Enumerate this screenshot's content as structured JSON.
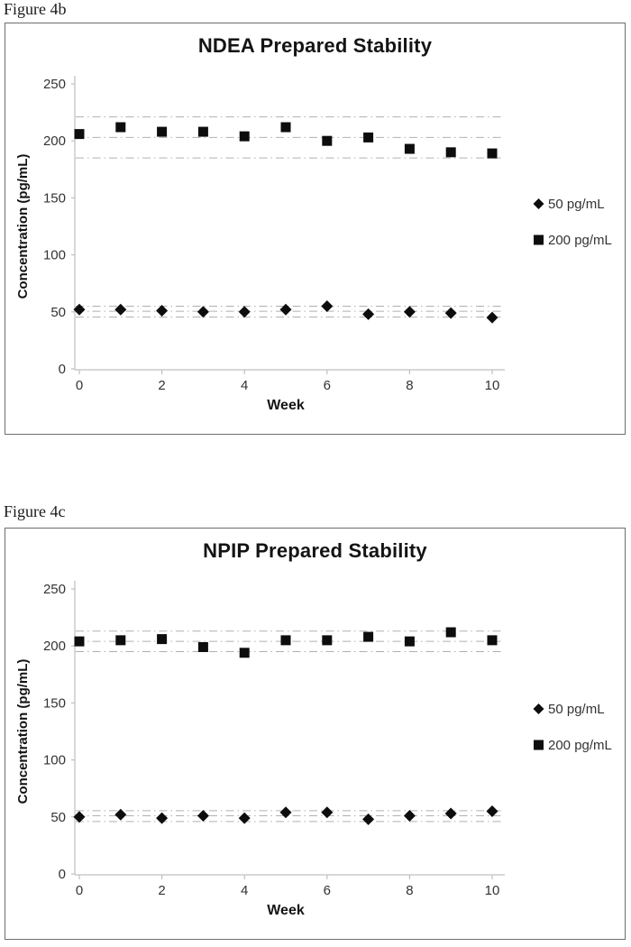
{
  "page": {
    "background": "#ffffff"
  },
  "style": {
    "marker_color": "#0d0d0d",
    "limit_line_color": "#b0b0b0",
    "axis_color": "#bfbfbf",
    "text_color": "#333333",
    "title_color": "#141414"
  },
  "chart_data": [
    {
      "type": "scatter",
      "figure_label": "Figure 4b",
      "title": "NDEA Prepared Stability",
      "xlabel": "Week",
      "ylabel": "Concentration (pg/mL)",
      "xlim": [
        0,
        10
      ],
      "ylim": [
        0,
        250
      ],
      "x_ticks": [
        0,
        2,
        4,
        6,
        8,
        10
      ],
      "y_ticks": [
        0,
        50,
        100,
        150,
        200,
        250
      ],
      "grid": false,
      "legend_position": "right",
      "x": [
        0,
        1,
        2,
        3,
        4,
        5,
        6,
        7,
        8,
        9,
        10
      ],
      "series": [
        {
          "name": "50 pg/mL",
          "marker": "diamond",
          "values": [
            52,
            52,
            51,
            50,
            50,
            52,
            55,
            48,
            50,
            49,
            45
          ],
          "limit_lines": [
            55,
            50.5,
            45.5
          ]
        },
        {
          "name": "200 pg/mL",
          "marker": "square",
          "values": [
            206,
            212,
            208,
            208,
            204,
            212,
            200,
            203,
            193,
            190,
            189
          ],
          "limit_lines": [
            221,
            203,
            185
          ]
        }
      ]
    },
    {
      "type": "scatter",
      "figure_label": "Figure 4c",
      "title": "NPIP Prepared Stability",
      "xlabel": "Week",
      "ylabel": "Concentration (pg/mL)",
      "xlim": [
        0,
        10
      ],
      "ylim": [
        0,
        250
      ],
      "x_ticks": [
        0,
        2,
        4,
        6,
        8,
        10
      ],
      "y_ticks": [
        0,
        50,
        100,
        150,
        200,
        250
      ],
      "grid": false,
      "legend_position": "right",
      "x": [
        0,
        1,
        2,
        3,
        4,
        5,
        6,
        7,
        8,
        9,
        10
      ],
      "series": [
        {
          "name": "50 pg/mL",
          "marker": "diamond",
          "values": [
            50,
            52,
            49,
            51,
            49,
            54,
            54,
            48,
            51,
            53,
            55
          ],
          "limit_lines": [
            55.5,
            51,
            46
          ]
        },
        {
          "name": "200 pg/mL",
          "marker": "square",
          "values": [
            204,
            205,
            206,
            199,
            194,
            205,
            205,
            208,
            204,
            212,
            205
          ],
          "limit_lines": [
            213,
            204,
            195
          ]
        }
      ]
    }
  ]
}
